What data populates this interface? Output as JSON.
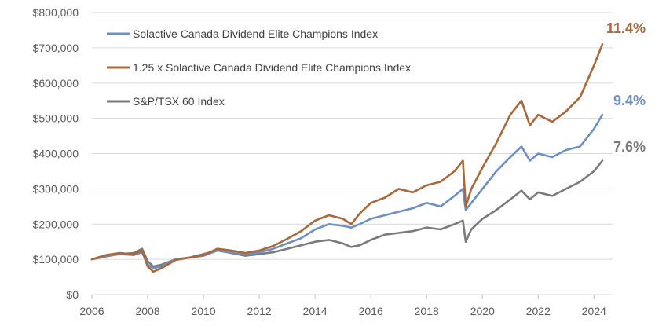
{
  "chart_data": {
    "type": "line",
    "title": "",
    "xlabel": "",
    "ylabel": "",
    "xlim": [
      2006,
      2024.3
    ],
    "ylim": [
      0,
      800000
    ],
    "x_ticks": [
      2006,
      2008,
      2010,
      2012,
      2014,
      2016,
      2018,
      2020,
      2022,
      2024
    ],
    "x_tick_labels": [
      "2006",
      "2008",
      "2010",
      "2012",
      "2014",
      "2016",
      "2018",
      "2020",
      "2022",
      "2024"
    ],
    "y_ticks": [
      0,
      100000,
      200000,
      300000,
      400000,
      500000,
      600000,
      700000,
      800000
    ],
    "y_tick_labels": [
      "$0",
      "$100,000",
      "$200,000",
      "$300,000",
      "$400,000",
      "$500,000",
      "$600,000",
      "$700,000",
      "$800,000"
    ],
    "grid": "horizontal",
    "legend_position": "top-left",
    "series": [
      {
        "name": "Solactive Canada Dividend Elite Champions Index",
        "color": "#6d8fc4",
        "end_label": "9.4%",
        "x": [
          2006,
          2006.5,
          2007,
          2007.5,
          2007.8,
          2008,
          2008.2,
          2008.5,
          2009,
          2009.5,
          2010,
          2010.5,
          2011,
          2011.5,
          2012,
          2012.5,
          2013,
          2013.5,
          2014,
          2014.5,
          2015,
          2015.3,
          2015.6,
          2016,
          2016.5,
          2017,
          2017.5,
          2018,
          2018.5,
          2019,
          2019.3,
          2019.4,
          2019.6,
          2020,
          2020.5,
          2021,
          2021.4,
          2021.7,
          2022,
          2022.5,
          2023,
          2023.5,
          2024,
          2024.3
        ],
        "values": [
          100000,
          110000,
          115000,
          112000,
          120000,
          85000,
          75000,
          80000,
          100000,
          105000,
          110000,
          125000,
          120000,
          115000,
          120000,
          130000,
          145000,
          160000,
          185000,
          200000,
          195000,
          190000,
          200000,
          215000,
          225000,
          235000,
          245000,
          260000,
          250000,
          280000,
          300000,
          240000,
          260000,
          300000,
          350000,
          390000,
          420000,
          380000,
          400000,
          390000,
          410000,
          420000,
          470000,
          510000
        ]
      },
      {
        "name": "1.25 x Solactive Canada Dividend Elite Champions Index",
        "color": "#a9683a",
        "end_label": "11.4%",
        "x": [
          2006,
          2006.5,
          2007,
          2007.5,
          2007.8,
          2008,
          2008.2,
          2008.5,
          2009,
          2009.5,
          2010,
          2010.5,
          2011,
          2011.5,
          2012,
          2012.5,
          2013,
          2013.5,
          2014,
          2014.5,
          2015,
          2015.3,
          2015.6,
          2016,
          2016.5,
          2017,
          2017.5,
          2018,
          2018.5,
          2019,
          2019.3,
          2019.4,
          2019.6,
          2020,
          2020.5,
          2021,
          2021.4,
          2021.7,
          2022,
          2022.5,
          2023,
          2023.5,
          2024,
          2024.3
        ],
        "values": [
          100000,
          112000,
          118000,
          114000,
          125000,
          80000,
          65000,
          75000,
          98000,
          105000,
          112000,
          130000,
          125000,
          118000,
          125000,
          138000,
          158000,
          180000,
          210000,
          225000,
          215000,
          200000,
          230000,
          260000,
          275000,
          300000,
          290000,
          310000,
          320000,
          350000,
          380000,
          250000,
          300000,
          360000,
          430000,
          510000,
          550000,
          480000,
          510000,
          490000,
          520000,
          560000,
          650000,
          710000
        ]
      },
      {
        "name": "S&P/TSX 60 Index",
        "color": "#7a7a7a",
        "end_label": "7.6%",
        "x": [
          2006,
          2006.5,
          2007,
          2007.5,
          2007.8,
          2008,
          2008.2,
          2008.5,
          2009,
          2009.5,
          2010,
          2010.5,
          2011,
          2011.5,
          2012,
          2012.5,
          2013,
          2013.5,
          2014,
          2014.5,
          2015,
          2015.3,
          2015.6,
          2016,
          2016.5,
          2017,
          2017.5,
          2018,
          2018.5,
          2019,
          2019.3,
          2019.4,
          2019.6,
          2020,
          2020.5,
          2021,
          2021.4,
          2021.7,
          2022,
          2022.5,
          2023,
          2023.5,
          2024,
          2024.3
        ],
        "values": [
          100000,
          108000,
          115000,
          118000,
          130000,
          95000,
          80000,
          85000,
          100000,
          105000,
          115000,
          125000,
          118000,
          110000,
          115000,
          120000,
          130000,
          140000,
          150000,
          155000,
          145000,
          135000,
          140000,
          155000,
          170000,
          175000,
          180000,
          190000,
          185000,
          200000,
          210000,
          150000,
          185000,
          215000,
          240000,
          270000,
          295000,
          270000,
          290000,
          280000,
          300000,
          320000,
          350000,
          380000
        ]
      }
    ]
  }
}
